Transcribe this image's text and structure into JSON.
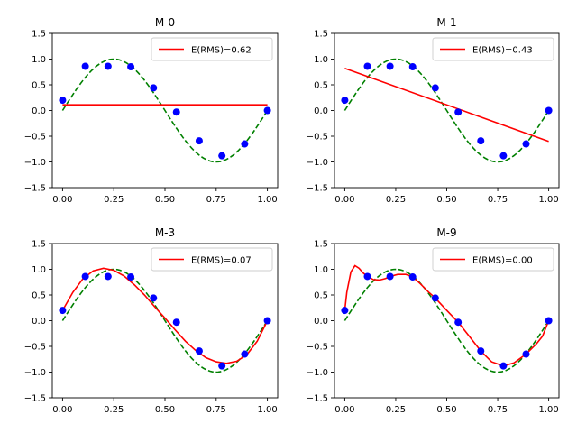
{
  "chart_data": [
    {
      "type": "line",
      "title": "M-0",
      "xlim": [
        0,
        1
      ],
      "ylim": [
        -1.5,
        1.5
      ],
      "xticks": [
        "0.00",
        "0.25",
        "0.50",
        "0.75",
        "1.00"
      ],
      "yticks": [
        "1.5",
        "1.0",
        "0.5",
        "0.0",
        "−0.5",
        "−1.0",
        "−1.5"
      ],
      "points": {
        "x": [
          0.0,
          0.111,
          0.222,
          0.333,
          0.444,
          0.556,
          0.667,
          0.778,
          0.889,
          1.0
        ],
        "y": [
          0.2,
          0.86,
          0.86,
          0.85,
          0.44,
          -0.03,
          -0.59,
          -0.88,
          -0.65,
          0.0
        ]
      },
      "fit": {
        "x": [
          0.0,
          1.0
        ],
        "y": [
          0.11,
          0.11
        ]
      },
      "legend": "E(RMS)=0.62",
      "legend_position": "upper right"
    },
    {
      "type": "line",
      "title": "M-1",
      "xlim": [
        0,
        1
      ],
      "ylim": [
        -1.5,
        1.5
      ],
      "xticks": [
        "0.00",
        "0.25",
        "0.50",
        "0.75",
        "1.00"
      ],
      "yticks": [
        "1.5",
        "1.0",
        "0.5",
        "0.0",
        "−0.5",
        "−1.0",
        "−1.5"
      ],
      "points": {
        "x": [
          0.0,
          0.111,
          0.222,
          0.333,
          0.444,
          0.556,
          0.667,
          0.778,
          0.889,
          1.0
        ],
        "y": [
          0.2,
          0.86,
          0.86,
          0.85,
          0.44,
          -0.03,
          -0.59,
          -0.88,
          -0.65,
          0.0
        ]
      },
      "fit": {
        "x": [
          0.0,
          1.0
        ],
        "y": [
          0.82,
          -0.6
        ]
      },
      "legend": "E(RMS)=0.43",
      "legend_position": "upper right"
    },
    {
      "type": "line",
      "title": "M-3",
      "xlim": [
        0,
        1
      ],
      "ylim": [
        -1.5,
        1.5
      ],
      "xticks": [
        "0.00",
        "0.25",
        "0.50",
        "0.75",
        "1.00"
      ],
      "yticks": [
        "1.5",
        "1.0",
        "0.5",
        "0.0",
        "−0.5",
        "−1.0",
        "−1.5"
      ],
      "points": {
        "x": [
          0.0,
          0.111,
          0.222,
          0.333,
          0.444,
          0.556,
          0.667,
          0.778,
          0.889,
          1.0
        ],
        "y": [
          0.2,
          0.86,
          0.86,
          0.85,
          0.44,
          -0.03,
          -0.59,
          -0.88,
          -0.65,
          0.0
        ]
      },
      "fit": {
        "x": [
          0.0,
          0.05,
          0.1,
          0.15,
          0.2,
          0.25,
          0.3,
          0.35,
          0.4,
          0.45,
          0.5,
          0.55,
          0.6,
          0.65,
          0.7,
          0.75,
          0.8,
          0.85,
          0.9,
          0.95,
          1.0
        ],
        "y": [
          0.2,
          0.55,
          0.82,
          0.97,
          1.02,
          0.98,
          0.87,
          0.7,
          0.5,
          0.27,
          0.05,
          -0.18,
          -0.4,
          -0.58,
          -0.72,
          -0.8,
          -0.83,
          -0.79,
          -0.66,
          -0.4,
          0.0
        ]
      },
      "legend": "E(RMS)=0.07",
      "legend_position": "upper right"
    },
    {
      "type": "line",
      "title": "M-9",
      "xlim": [
        0,
        1
      ],
      "ylim": [
        -1.5,
        1.5
      ],
      "xticks": [
        "0.00",
        "0.25",
        "0.50",
        "0.75",
        "1.00"
      ],
      "yticks": [
        "1.5",
        "1.0",
        "0.5",
        "0.0",
        "−0.5",
        "−1.0",
        "−1.5"
      ],
      "points": {
        "x": [
          0.0,
          0.111,
          0.222,
          0.333,
          0.444,
          0.556,
          0.667,
          0.778,
          0.889,
          1.0
        ],
        "y": [
          0.2,
          0.86,
          0.86,
          0.85,
          0.44,
          -0.03,
          -0.59,
          -0.88,
          -0.65,
          0.0
        ]
      },
      "fit": {
        "x": [
          0.0,
          0.01,
          0.03,
          0.05,
          0.07,
          0.09,
          0.111,
          0.14,
          0.17,
          0.2,
          0.222,
          0.26,
          0.3,
          0.333,
          0.37,
          0.41,
          0.444,
          0.5,
          0.556,
          0.61,
          0.667,
          0.72,
          0.778,
          0.83,
          0.889,
          0.94,
          0.97,
          1.0
        ],
        "y": [
          0.2,
          0.55,
          0.95,
          1.07,
          1.02,
          0.93,
          0.86,
          0.8,
          0.79,
          0.82,
          0.86,
          0.9,
          0.9,
          0.85,
          0.72,
          0.56,
          0.44,
          0.2,
          -0.03,
          -0.3,
          -0.59,
          -0.8,
          -0.88,
          -0.82,
          -0.65,
          -0.45,
          -0.3,
          0.0
        ]
      },
      "legend": "E(RMS)=0.00",
      "legend_position": "upper right"
    }
  ],
  "colors": {
    "points": "#0000ff",
    "fit": "#ff0000",
    "truth": "#008000",
    "axes": "#000000",
    "legend_border": "#cccccc"
  }
}
